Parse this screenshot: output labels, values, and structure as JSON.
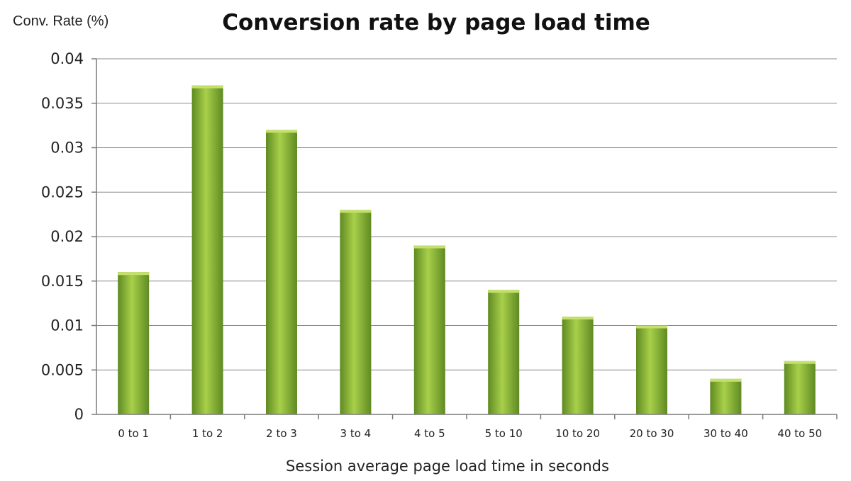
{
  "chart_data": {
    "type": "bar",
    "title": "Conversion rate by page load time",
    "ylabel": "Conv. Rate (%)",
    "xlabel": "Session average page load time in seconds",
    "categories": [
      "0 to 1",
      "1 to 2",
      "2 to 3",
      "3 to 4",
      "4 to 5",
      "5 to 10",
      "10 to 20",
      "20 to 30",
      "30 to 40",
      "40 to 50"
    ],
    "values": [
      0.016,
      0.037,
      0.032,
      0.023,
      0.019,
      0.014,
      0.011,
      0.01,
      0.004,
      0.006
    ],
    "ylim": [
      0,
      0.04
    ],
    "yticks": [
      "0",
      "0.005",
      "0.01",
      "0.015",
      "0.02",
      "0.025",
      "0.03",
      "0.035",
      "0.04"
    ],
    "ytick_values": [
      0,
      0.005,
      0.01,
      0.015,
      0.02,
      0.025,
      0.03,
      0.035,
      0.04
    ],
    "grid": true,
    "legend": "none",
    "colors": {
      "bar_light": "#a8d04a",
      "bar_mid": "#86b23a",
      "bar_dark": "#5f8a22",
      "bar_top": "#c2e06a",
      "gridline": "#8a8a8a"
    }
  }
}
